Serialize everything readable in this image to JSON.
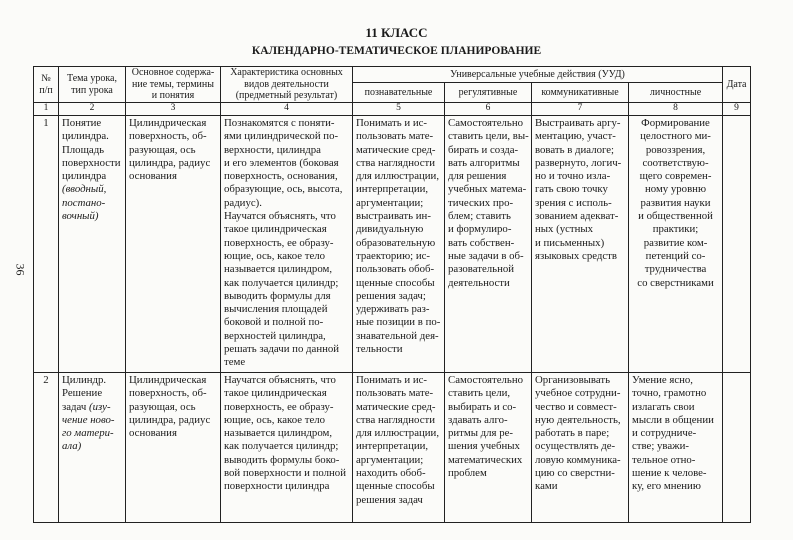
{
  "header": {
    "title": "11 КЛАСС",
    "subtitle": "КАЛЕНДАРНО-ТЕМАТИЧЕСКОЕ ПЛАНИРОВАНИЕ",
    "page_number": "36"
  },
  "table": {
    "head": {
      "number": [
        "№",
        "п/п"
      ],
      "topic": [
        "Тема урока,",
        "тип урока"
      ],
      "content": [
        "Основное содержа-",
        "ние темы, термины",
        "и понятия"
      ],
      "activity": [
        "Характеристика основных",
        "видов деятельности",
        "(предметный результат)"
      ],
      "uud": "Универсальные учебные действия (УУД)",
      "uud_columns": [
        "познавательные",
        "регулятивные",
        "коммуникативные",
        "личностные"
      ],
      "date": "Дата"
    },
    "column_numbers": [
      "1",
      "2",
      "3",
      "4",
      "5",
      "6",
      "7",
      "8",
      "9"
    ],
    "rows": [
      {
        "number": "1",
        "topic": [
          "Понятие",
          "цилиндра.",
          "Площадь",
          "поверхности",
          "цилиндра"
        ],
        "lesson_type": [
          "(вводный,",
          "постано-",
          "вочный)"
        ],
        "content": [
          "Цилиндрическая",
          "поверхность, об-",
          "разующая, ось",
          "цилиндра, радиус",
          "основания"
        ],
        "activity": [
          "Познакомятся с поняти-",
          "ями цилиндрической по-",
          "верхности, цилиндра",
          "и его элементов (боковая",
          "поверхность, основания,",
          "образующие, ось, высота,",
          "радиус).",
          "Научатся объяснять, что",
          "такое цилиндрическая",
          "поверхность, ее образу-",
          "ющие, ось, какое тело",
          "называется цилиндром,",
          "как получается цилиндр;",
          "выводить формулы для",
          "вычисления площадей",
          "боковой и полной по-",
          "верхностей цилиндра,",
          "решать задачи по данной",
          "теме"
        ],
        "cognitive": [
          "Понимать и ис-",
          "пользовать мате-",
          "матические сред-",
          "ства наглядности",
          "для иллюстрации,",
          "интерпретации,",
          "аргументации;",
          "выстраивать ин-",
          "дивидуальную",
          "образовательную",
          "траекторию; ис-",
          "пользовать обоб-",
          "щенные способы",
          "решения задач;",
          "удерживать раз-",
          "ные позиции в по-",
          "знавательной дея-",
          "тельности"
        ],
        "regulatory": [
          "Самостоятельно",
          "ставить цели, вы-",
          "бирать и созда-",
          "вать алгоритмы",
          "для решения",
          "учебных матема-",
          "тических про-",
          "блем; ставить",
          "и формулиро-",
          "вать собствен-",
          "ные задачи в об-",
          "разовательной",
          "деятельности"
        ],
        "communicative": [
          "Выстраивать аргу-",
          "ментацию, участ-",
          "вовать в диалоге;",
          "развернуто, логич-",
          "но и точно изла-",
          "гать свою точку",
          "зрения с исполь-",
          "зованием адекват-",
          "ных (устных",
          "и письменных)",
          "языковых средств"
        ],
        "personal": [
          "Формирование",
          "целостного ми-",
          "ровоззрения,",
          "соответствую-",
          "щего современ-",
          "ному уровню",
          "развития науки",
          "и общественной",
          "практики;",
          "развитие ком-",
          "петенций со-",
          "трудничества",
          "со сверстниками"
        ]
      },
      {
        "number": "2",
        "topic": [
          "Цилиндр.",
          "Решение",
          "задач"
        ],
        "lesson_type": [
          "(изу-",
          "чение ново-",
          "го матери-",
          "ала)"
        ],
        "content": [
          "Цилиндрическая",
          "поверхность, об-",
          "разующая, ось",
          "цилиндра, радиус",
          "основания"
        ],
        "activity": [
          "Научатся объяснять, что",
          "такое цилиндрическая",
          "поверхность, ее образу-",
          "ющие, ось, какое тело",
          "называется цилиндром,",
          "как получается цилиндр;",
          "выводить формулы боко-",
          "вой поверхности и полной",
          "поверхности цилиндра"
        ],
        "cognitive": [
          "Понимать и ис-",
          "пользовать мате-",
          "матические сред-",
          "ства наглядности",
          "для иллюстрации,",
          "интерпретации,",
          "аргументации;",
          "находить обоб-",
          "щенные способы",
          "решения задач"
        ],
        "regulatory": [
          "Самостоятельно",
          "ставить цели,",
          "выбирать и со-",
          "здавать алго-",
          "ритмы для ре-",
          "шения учебных",
          "математических",
          "проблем"
        ],
        "communicative": [
          "Организовывать",
          "учебное сотрудни-",
          "чество и совмест-",
          "ную деятельность,",
          "работать в паре;",
          "осуществлять де-",
          "ловую коммуника-",
          "цию со сверстни-",
          "ками"
        ],
        "personal": [
          "Умение ясно,",
          "точно, грамотно",
          "излагать свои",
          "мысли в общении",
          "и сотрудниче-",
          "стве; уважи-",
          "тельное отно-",
          "шение к челове-",
          "ку, его мнению"
        ]
      }
    ]
  }
}
